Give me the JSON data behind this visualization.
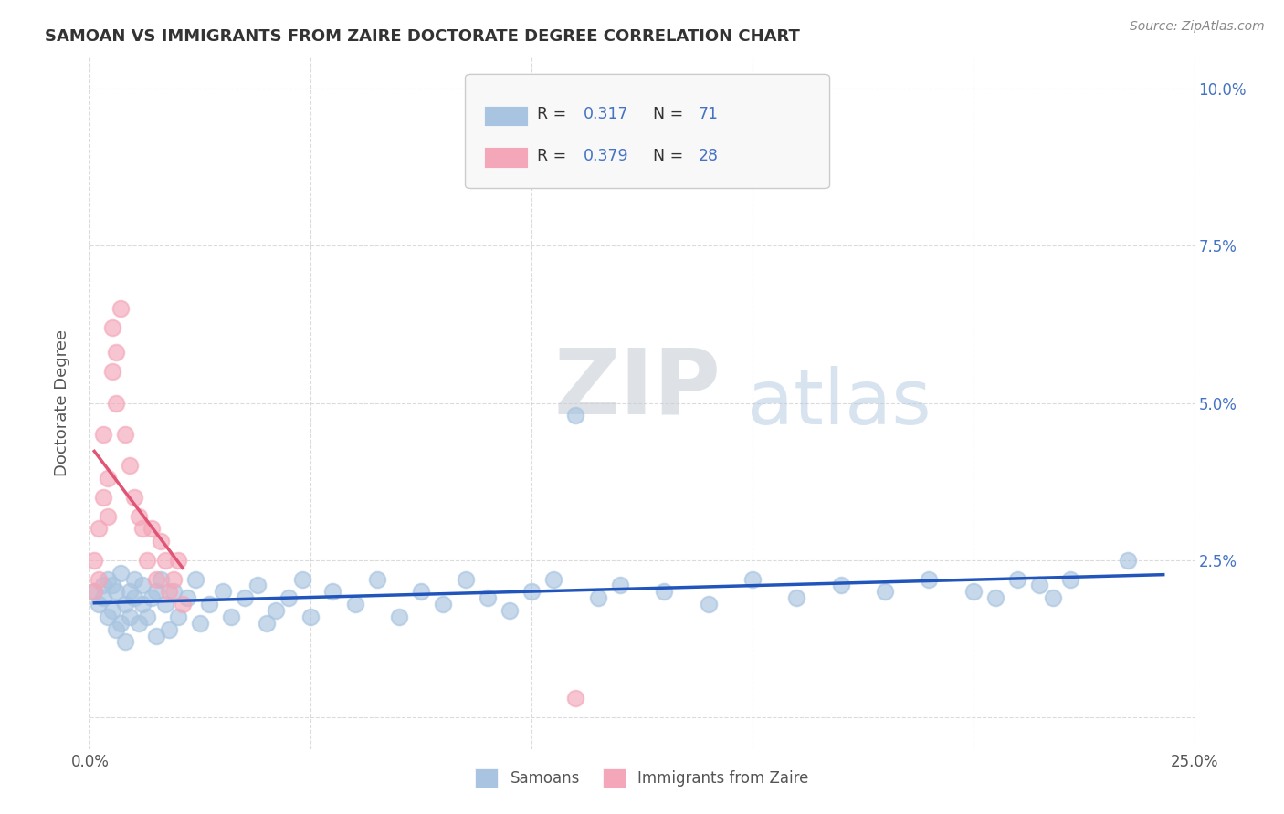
{
  "title": "SAMOAN VS IMMIGRANTS FROM ZAIRE DOCTORATE DEGREE CORRELATION CHART",
  "source": "Source: ZipAtlas.com",
  "ylabel": "Doctorate Degree",
  "xlim": [
    0.0,
    0.25
  ],
  "ylim": [
    -0.005,
    0.105
  ],
  "samoans_color": "#a8c4e0",
  "samoans_edge": "#7aafd4",
  "zaire_color": "#f4a7b9",
  "zaire_edge": "#e07090",
  "samoans_line_color": "#2255bb",
  "zaire_line_color": "#e05575",
  "R_samoans": 0.317,
  "N_samoans": 71,
  "R_zaire": 0.379,
  "N_zaire": 28,
  "legend_labels": [
    "Samoans",
    "Immigrants from Zaire"
  ],
  "background_color": "#ffffff",
  "grid_color": "#cccccc",
  "title_color": "#333333",
  "samoans_x": [
    0.001,
    0.002,
    0.003,
    0.003,
    0.004,
    0.004,
    0.005,
    0.005,
    0.006,
    0.006,
    0.007,
    0.007,
    0.008,
    0.008,
    0.009,
    0.009,
    0.01,
    0.01,
    0.011,
    0.012,
    0.012,
    0.013,
    0.014,
    0.015,
    0.015,
    0.016,
    0.017,
    0.018,
    0.019,
    0.02,
    0.022,
    0.024,
    0.025,
    0.027,
    0.03,
    0.032,
    0.035,
    0.038,
    0.04,
    0.042,
    0.045,
    0.048,
    0.05,
    0.055,
    0.06,
    0.065,
    0.07,
    0.075,
    0.08,
    0.085,
    0.09,
    0.095,
    0.1,
    0.105,
    0.11,
    0.115,
    0.12,
    0.13,
    0.14,
    0.15,
    0.16,
    0.17,
    0.18,
    0.19,
    0.2,
    0.205,
    0.21,
    0.215,
    0.218,
    0.222,
    0.235
  ],
  "samoans_y": [
    0.02,
    0.018,
    0.019,
    0.021,
    0.016,
    0.022,
    0.017,
    0.021,
    0.014,
    0.02,
    0.015,
    0.023,
    0.018,
    0.012,
    0.02,
    0.016,
    0.019,
    0.022,
    0.015,
    0.018,
    0.021,
    0.016,
    0.019,
    0.02,
    0.013,
    0.022,
    0.018,
    0.014,
    0.02,
    0.016,
    0.019,
    0.022,
    0.015,
    0.018,
    0.02,
    0.016,
    0.019,
    0.021,
    0.015,
    0.017,
    0.019,
    0.022,
    0.016,
    0.02,
    0.018,
    0.022,
    0.016,
    0.02,
    0.018,
    0.022,
    0.019,
    0.017,
    0.02,
    0.022,
    0.048,
    0.019,
    0.021,
    0.02,
    0.018,
    0.022,
    0.019,
    0.021,
    0.02,
    0.022,
    0.02,
    0.019,
    0.022,
    0.021,
    0.019,
    0.022,
    0.025
  ],
  "zaire_x": [
    0.001,
    0.001,
    0.002,
    0.002,
    0.003,
    0.003,
    0.004,
    0.004,
    0.005,
    0.005,
    0.006,
    0.006,
    0.007,
    0.008,
    0.009,
    0.01,
    0.011,
    0.012,
    0.013,
    0.014,
    0.015,
    0.016,
    0.017,
    0.018,
    0.019,
    0.02,
    0.021,
    0.11
  ],
  "zaire_y": [
    0.02,
    0.025,
    0.022,
    0.03,
    0.035,
    0.045,
    0.032,
    0.038,
    0.055,
    0.062,
    0.05,
    0.058,
    0.065,
    0.045,
    0.04,
    0.035,
    0.032,
    0.03,
    0.025,
    0.03,
    0.022,
    0.028,
    0.025,
    0.02,
    0.022,
    0.025,
    0.018,
    0.003
  ]
}
